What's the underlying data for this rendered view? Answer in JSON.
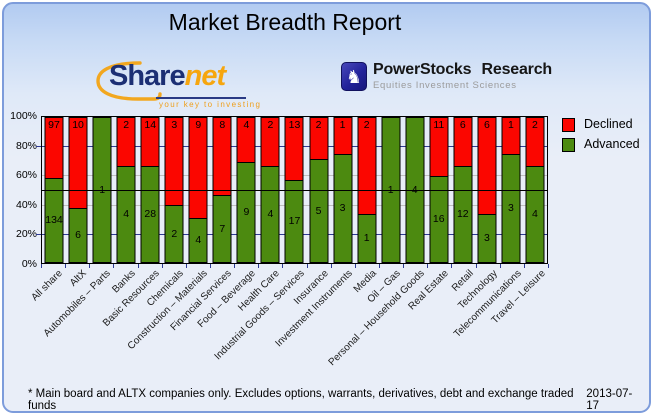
{
  "header": {
    "title": "Market Breadth Report"
  },
  "logos": {
    "sharenet": {
      "word_share": "Share",
      "word_net": "net",
      "tagline": "your key to investing",
      "arc_icon": "sharenet-swoosh-icon",
      "brand_navy": "#1c2f74",
      "brand_orange": "#f6a60f"
    },
    "powerstocks": {
      "icon": "knight-icon",
      "icon_glyph": "♞",
      "name": "PowerStocks Research",
      "subtitle": "Equities Investment Sciences",
      "brand_blue": "#22229a"
    }
  },
  "chart_data": {
    "type": "bar",
    "stacked": true,
    "title": "Market Breadth Report",
    "categories": [
      "All share",
      "AltX",
      "Automobiles – Parts",
      "Banks",
      "Basic Resources",
      "Chemicals",
      "Construction – Materials",
      "Financial Services",
      "Food – Beverage",
      "Health Care",
      "Industrial Goods – Services",
      "Insurance",
      "Investment Instruments",
      "Media",
      "Oil – Gas",
      "Personal – Household Goods",
      "Real Estate",
      "Retail",
      "Technology",
      "Telecommunications",
      "Travel – Leisure"
    ],
    "series": [
      {
        "name": "Declined",
        "color": "#fb0600",
        "values": [
          97,
          10,
          0,
          2,
          14,
          3,
          9,
          8,
          4,
          2,
          13,
          2,
          1,
          2,
          0,
          0,
          11,
          6,
          6,
          1,
          2
        ]
      },
      {
        "name": "Advanced",
        "color": "#4c8a10",
        "values": [
          134,
          6,
          1,
          4,
          28,
          2,
          4,
          7,
          9,
          4,
          17,
          5,
          3,
          1,
          1,
          4,
          16,
          12,
          3,
          3,
          4
        ]
      }
    ],
    "value_labels": true,
    "y_ticks": [
      100,
      80,
      60,
      40,
      20,
      0
    ],
    "y_tick_suffix": "%",
    "ylim": [
      0,
      100
    ],
    "unit": "percent of sector total",
    "legend_position": "right",
    "gridlines": {
      "navy_at": [
        20,
        80
      ],
      "gray_at": [
        40,
        60
      ],
      "black_overlay_at": 50,
      "navy_color": "#2e3a94",
      "gray_color": "#bfbfbf",
      "black_color": "#000000"
    }
  },
  "footer": {
    "note": "* Main board and ALTX companies only. Excludes options, warrants, derivatives, debt and exchange traded funds",
    "date": "2013-07-17"
  }
}
